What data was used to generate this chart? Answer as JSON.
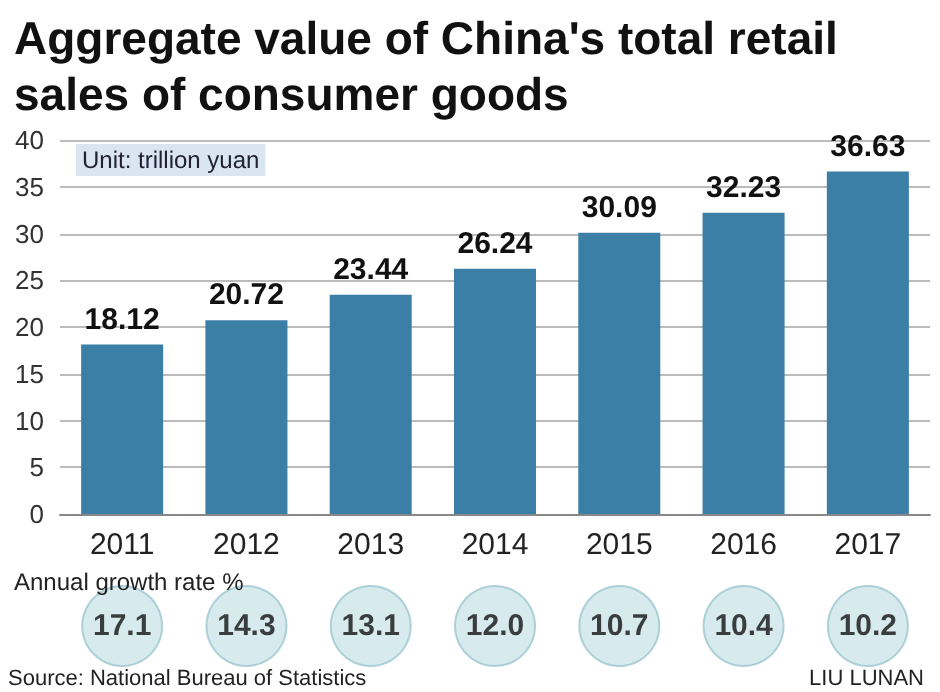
{
  "chart_data": [
    {
      "type": "bar",
      "title": "Aggregate value of China's total retail sales of consumer goods",
      "categories": [
        "2011",
        "2012",
        "2013",
        "2014",
        "2015",
        "2016",
        "2017"
      ],
      "values": [
        18.12,
        20.72,
        23.44,
        26.24,
        30.09,
        32.23,
        36.63
      ],
      "color": "#3c7fa6",
      "ylim": [
        0,
        40
      ],
      "yticks": [
        0,
        5,
        10,
        15,
        20,
        25,
        30,
        35,
        40
      ],
      "grid": "y",
      "data_labels": true,
      "annotations": [
        "Unit: trillion yuan"
      ]
    },
    {
      "type": "other",
      "title": "Annual growth rate %",
      "values": [
        17.1,
        14.3,
        13.1,
        12.0,
        10.7,
        10.4,
        10.2
      ],
      "value_labels": [
        "17.1",
        "14.3",
        "13.1",
        "12.0",
        "10.7",
        "10.4",
        "10.2"
      ],
      "color": "#cde5e8",
      "annotations": [
        "Source: National Bureau of Statistics",
        "LIU LUNAN"
      ]
    }
  ]
}
